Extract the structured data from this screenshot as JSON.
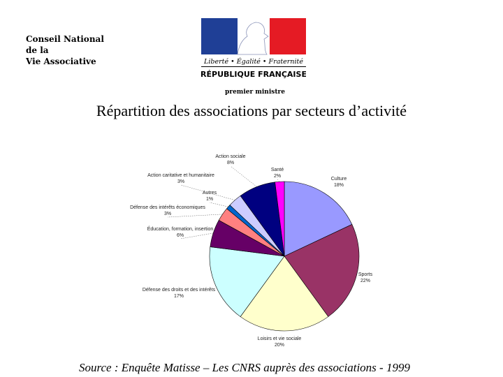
{
  "header": {
    "org_lines": [
      "Conseil National",
      "de la",
      "Vie Associative"
    ],
    "logo_text": {
      "motto": "Liberté • Égalité • Fraternité",
      "republic": "RÉPUBLIQUE FRANÇAISE"
    },
    "subtitle": "premier ministre"
  },
  "colors": {
    "logo_blue": "#1f3f96",
    "logo_red": "#e51b24"
  },
  "chart_data": {
    "type": "pie",
    "title": "Répartition des associations par secteurs d’activité",
    "slices": [
      {
        "label": "Culture",
        "value_label": "18%",
        "value": 18,
        "color": "#9999ff"
      },
      {
        "label": "Sports",
        "value_label": "22%",
        "value": 22,
        "color": "#993366"
      },
      {
        "label": "Loisirs et vie sociale",
        "value_label": "20%",
        "value": 20,
        "color": "#ffffcc"
      },
      {
        "label": "Défense des droits et des intérêts",
        "value_label": "17%",
        "value": 17,
        "color": "#ccffff"
      },
      {
        "label": "Éducation, formation, insertion",
        "value_label": "6%",
        "value": 6,
        "color": "#660066"
      },
      {
        "label": "Défense des intérêts économiques",
        "value_label": "3%",
        "value": 3,
        "color": "#ff8080"
      },
      {
        "label": "Autres",
        "value_label": "1%",
        "value": 1,
        "color": "#0066cc"
      },
      {
        "label": "Action caritative et humanitaire",
        "value_label": "3%",
        "value": 3,
        "color": "#ccccff"
      },
      {
        "label": "Action sociale",
        "value_label": "8%",
        "value": 8,
        "color": "#000080"
      },
      {
        "label": "Santé",
        "value_label": "2%",
        "value": 2,
        "color": "#ff00ff"
      }
    ],
    "start_angle_deg": 0,
    "direction": "clockwise",
    "legend": "none"
  },
  "footer": {
    "source": "Source : Enquête Matisse – Les CNRS auprès des associations - 1999"
  }
}
